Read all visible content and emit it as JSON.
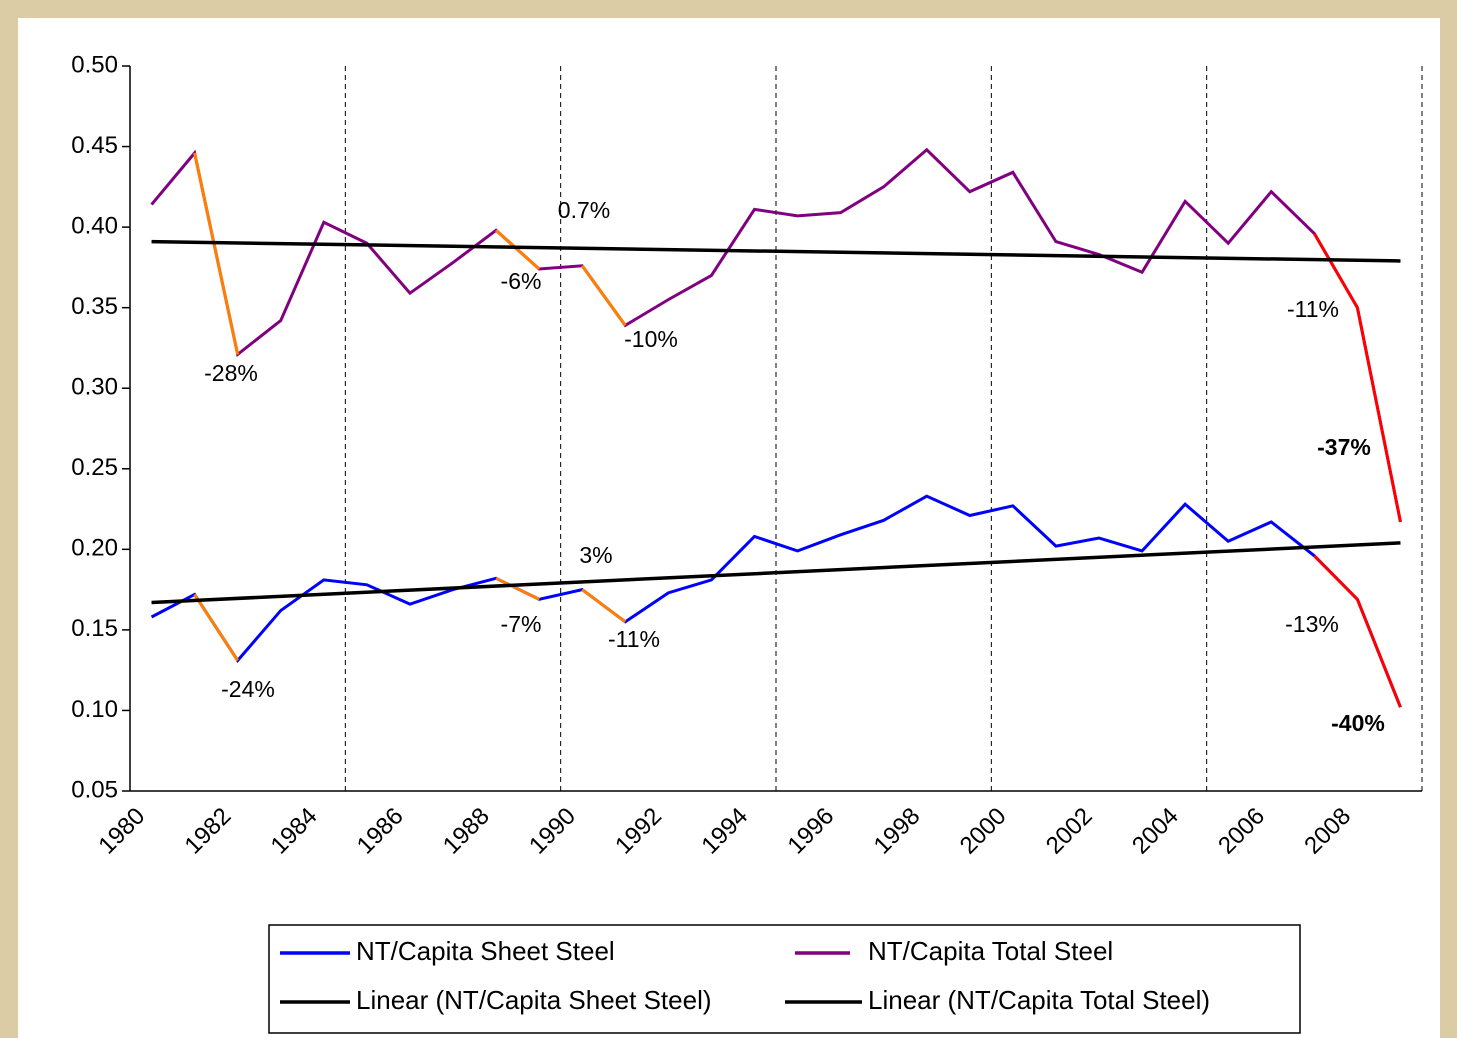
{
  "chart_data": {
    "type": "line",
    "categories": [
      "1980",
      null,
      "1982",
      null,
      "1984",
      null,
      "1986",
      null,
      "1988",
      null,
      "1990",
      null,
      "1992",
      null,
      "1994",
      null,
      "1996",
      null,
      "1998",
      null,
      "2000",
      null,
      "2002",
      null,
      "2004",
      null,
      "2006",
      null,
      "2008",
      null
    ],
    "series": [
      {
        "name": "NT/Capita Sheet Steel",
        "color": "#0000ff",
        "values": [
          0.158,
          0.172,
          0.131,
          0.162,
          0.181,
          0.178,
          0.166,
          0.175,
          0.182,
          0.169,
          0.175,
          0.155,
          0.173,
          0.181,
          0.208,
          0.199,
          0.209,
          0.218,
          0.233,
          0.221,
          0.227,
          0.202,
          0.207,
          0.199,
          0.228,
          0.205,
          0.217,
          0.196,
          0.169,
          0.102
        ],
        "highlights": [
          {
            "from": 1,
            "to": 2,
            "color": "#ff8000"
          },
          {
            "from": 8,
            "to": 9,
            "color": "#ff8000"
          },
          {
            "from": 10,
            "to": 11,
            "color": "#ff8000"
          },
          {
            "from": 27,
            "to": 29,
            "color": "#ff0000"
          }
        ]
      },
      {
        "name": "NT/Capita Total Steel",
        "color": "#800080",
        "values": [
          0.414,
          0.446,
          0.321,
          0.342,
          0.403,
          0.39,
          0.359,
          0.378,
          0.398,
          0.374,
          0.376,
          0.339,
          0.355,
          0.37,
          0.411,
          0.407,
          0.409,
          0.425,
          0.448,
          0.422,
          0.434,
          0.391,
          0.383,
          0.372,
          0.416,
          0.39,
          0.422,
          0.396,
          0.35,
          0.217
        ],
        "highlights": [
          {
            "from": 1,
            "to": 2,
            "color": "#ff8000"
          },
          {
            "from": 8,
            "to": 9,
            "color": "#ff8000"
          },
          {
            "from": 10,
            "to": 11,
            "color": "#ff8000"
          },
          {
            "from": 27,
            "to": 29,
            "color": "#ff0000"
          }
        ]
      }
    ],
    "trendlines": [
      {
        "name": "Linear (NT/Capita Sheet Steel)",
        "color": "#000000",
        "values": [
          0.167,
          0.204
        ]
      },
      {
        "name": "Linear (NT/Capita Total Steel)",
        "color": "#000000",
        "values": [
          0.391,
          0.379
        ]
      }
    ],
    "annotations": [
      {
        "text": "0.7%",
        "bold": false
      },
      {
        "text": "-6%",
        "bold": false
      },
      {
        "text": "-10%",
        "bold": false
      },
      {
        "text": "-28%",
        "bold": false
      },
      {
        "text": "-11%",
        "bold": false
      },
      {
        "text": "-37%",
        "bold": true
      },
      {
        "text": "3%",
        "bold": false
      },
      {
        "text": "-7%",
        "bold": false
      },
      {
        "text": "-11%",
        "bold": false
      },
      {
        "text": "-24%",
        "bold": false
      },
      {
        "text": "-13%",
        "bold": false
      },
      {
        "text": "-40%",
        "bold": true
      }
    ],
    "ylim": [
      0.05,
      0.5
    ],
    "yticks": [
      0.05,
      {
        "value": 0.1,
        "label": "0.10"
      },
      0.15,
      {
        "value": 0.2,
        "label": "0.20"
      },
      0.25,
      {
        "value": 0.3,
        "label": "0.30"
      },
      0.35,
      {
        "value": 0.4,
        "label": "0.40"
      },
      0.45,
      {
        "value": 0.5,
        "label": "0.50"
      }
    ]
  }
}
